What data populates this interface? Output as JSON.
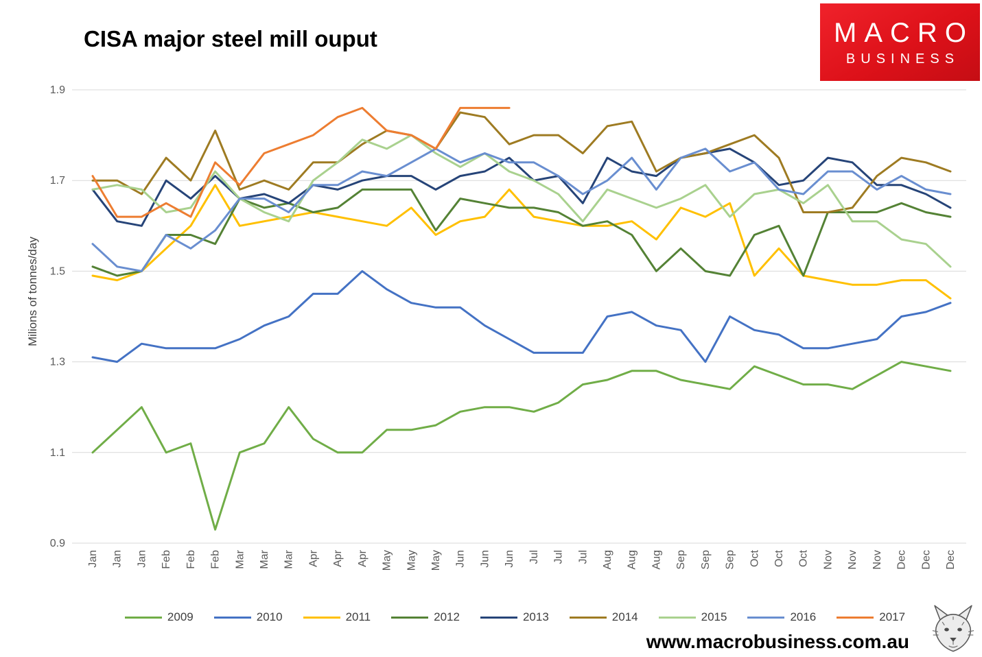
{
  "header": {
    "title": "CISA major steel mill ouput"
  },
  "logo": {
    "line1": "MACRO",
    "line2": "BUSINESS",
    "brand_red": "#dd1119"
  },
  "footer": {
    "url": "www.macrobusiness.com.au",
    "wolf_icon": "wolf-sketch"
  },
  "chart_data": {
    "type": "line",
    "title": "CISA major steel mill ouput",
    "xlabel": "",
    "ylabel": "Milions of tonnes/day",
    "ylim": [
      0.9,
      1.9
    ],
    "yticks": [
      0.9,
      1.1,
      1.3,
      1.5,
      1.7,
      1.9
    ],
    "grid": true,
    "legend_position": "bottom",
    "gridline_color": "#d9d9d9",
    "tick_label_color": "#595959",
    "categories": [
      "Jan",
      "Jan",
      "Jan",
      "Feb",
      "Feb",
      "Feb",
      "Mar",
      "Mar",
      "Mar",
      "Apr",
      "Apr",
      "Apr",
      "May",
      "May",
      "May",
      "Jun",
      "Jun",
      "Jun",
      "Jul",
      "Jul",
      "Jul",
      "Aug",
      "Aug",
      "Aug",
      "Sep",
      "Sep",
      "Sep",
      "Oct",
      "Oct",
      "Oct",
      "Nov",
      "Nov",
      "Nov",
      "Dec",
      "Dec",
      "Dec"
    ],
    "series": [
      {
        "name": "2009",
        "color": "#70ad47",
        "values": [
          1.1,
          1.15,
          1.2,
          1.1,
          1.12,
          0.93,
          1.1,
          1.12,
          1.2,
          1.13,
          1.1,
          1.1,
          1.15,
          1.15,
          1.16,
          1.19,
          1.2,
          1.2,
          1.19,
          1.21,
          1.25,
          1.26,
          1.28,
          1.28,
          1.26,
          1.25,
          1.24,
          1.29,
          1.27,
          1.25,
          1.25,
          1.24,
          1.27,
          1.3,
          1.29,
          1.28
        ]
      },
      {
        "name": "2010",
        "color": "#4472c4",
        "values": [
          1.31,
          1.3,
          1.34,
          1.33,
          1.33,
          1.33,
          1.35,
          1.38,
          1.4,
          1.45,
          1.45,
          1.5,
          1.46,
          1.43,
          1.42,
          1.42,
          1.38,
          1.35,
          1.32,
          1.32,
          1.32,
          1.4,
          1.41,
          1.38,
          1.37,
          1.3,
          1.4,
          1.37,
          1.36,
          1.33,
          1.33,
          1.34,
          1.35,
          1.4,
          1.41,
          1.43
        ]
      },
      {
        "name": "2011",
        "color": "#ffc000",
        "values": [
          1.49,
          1.48,
          1.5,
          1.55,
          1.6,
          1.69,
          1.6,
          1.61,
          1.62,
          1.63,
          1.62,
          1.61,
          1.6,
          1.64,
          1.58,
          1.61,
          1.62,
          1.68,
          1.62,
          1.61,
          1.6,
          1.6,
          1.61,
          1.57,
          1.64,
          1.62,
          1.65,
          1.49,
          1.55,
          1.49,
          1.48,
          1.47,
          1.47,
          1.48,
          1.48,
          1.44
        ]
      },
      {
        "name": "2012",
        "color": "#548235",
        "values": [
          1.51,
          1.49,
          1.5,
          1.58,
          1.58,
          1.56,
          1.66,
          1.64,
          1.65,
          1.63,
          1.64,
          1.68,
          1.68,
          1.68,
          1.59,
          1.66,
          1.65,
          1.64,
          1.64,
          1.63,
          1.6,
          1.61,
          1.58,
          1.5,
          1.55,
          1.5,
          1.49,
          1.58,
          1.6,
          1.49,
          1.63,
          1.63,
          1.63,
          1.65,
          1.63,
          1.62
        ]
      },
      {
        "name": "2013",
        "color": "#264478",
        "values": [
          1.68,
          1.61,
          1.6,
          1.7,
          1.66,
          1.71,
          1.66,
          1.67,
          1.65,
          1.69,
          1.68,
          1.7,
          1.71,
          1.71,
          1.68,
          1.71,
          1.72,
          1.75,
          1.7,
          1.71,
          1.65,
          1.75,
          1.72,
          1.71,
          1.75,
          1.76,
          1.77,
          1.74,
          1.69,
          1.7,
          1.75,
          1.74,
          1.69,
          1.69,
          1.67,
          1.64
        ]
      },
      {
        "name": "2014",
        "color": "#9e7b22",
        "values": [
          1.7,
          1.7,
          1.67,
          1.75,
          1.7,
          1.81,
          1.68,
          1.7,
          1.68,
          1.74,
          1.74,
          1.78,
          1.81,
          1.8,
          1.77,
          1.85,
          1.84,
          1.78,
          1.8,
          1.8,
          1.76,
          1.82,
          1.83,
          1.72,
          1.75,
          1.76,
          1.78,
          1.8,
          1.75,
          1.63,
          1.63,
          1.64,
          1.71,
          1.75,
          1.74,
          1.72
        ]
      },
      {
        "name": "2015",
        "color": "#a9d18e",
        "values": [
          1.68,
          1.69,
          1.68,
          1.63,
          1.64,
          1.72,
          1.66,
          1.63,
          1.61,
          1.7,
          1.74,
          1.79,
          1.77,
          1.8,
          1.76,
          1.73,
          1.76,
          1.72,
          1.7,
          1.67,
          1.61,
          1.68,
          1.66,
          1.64,
          1.66,
          1.69,
          1.62,
          1.67,
          1.68,
          1.65,
          1.69,
          1.61,
          1.61,
          1.57,
          1.56,
          1.51
        ]
      },
      {
        "name": "2016",
        "color": "#698ed0",
        "values": [
          1.56,
          1.51,
          1.5,
          1.58,
          1.55,
          1.59,
          1.66,
          1.66,
          1.63,
          1.69,
          1.69,
          1.72,
          1.71,
          1.74,
          1.77,
          1.74,
          1.76,
          1.74,
          1.74,
          1.71,
          1.67,
          1.7,
          1.75,
          1.68,
          1.75,
          1.77,
          1.72,
          1.74,
          1.68,
          1.67,
          1.72,
          1.72,
          1.68,
          1.71,
          1.68,
          1.67
        ]
      },
      {
        "name": "2017",
        "color": "#ed7d31",
        "values": [
          1.71,
          1.62,
          1.62,
          1.65,
          1.62,
          1.74,
          1.69,
          1.76,
          1.78,
          1.8,
          1.84,
          1.86,
          1.81,
          1.8,
          1.77,
          1.86,
          1.86,
          1.86,
          null,
          null,
          null,
          null,
          null,
          null,
          null,
          null,
          null,
          null,
          null,
          null,
          null,
          null,
          null,
          null,
          null,
          null
        ]
      }
    ]
  }
}
